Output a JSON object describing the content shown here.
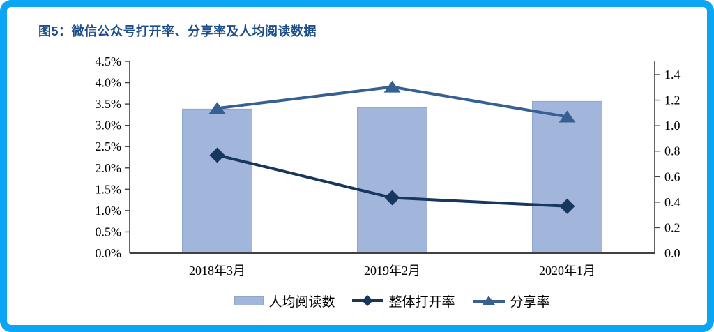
{
  "frame": {
    "border_color": "#0BA6F3"
  },
  "header": {
    "title": "图5：微信公众号打开率、分享率及人均阅读数据",
    "title_color": "#1B4E8A"
  },
  "chart_data": {
    "type": "bar",
    "subtype": "combo bar+line, dual axis",
    "title": "图5：微信公众号打开率、分享率及人均阅读数据",
    "categories": [
      "2018年3月",
      "2019年2月",
      "2020年1月"
    ],
    "left_axis": {
      "unit": "%",
      "min": 0,
      "max": 4.5,
      "step": 0.5,
      "ticks": [
        "0.0%",
        "0.5%",
        "1.0%",
        "1.5%",
        "2.0%",
        "2.5%",
        "3.0%",
        "3.5%",
        "4.0%",
        "4.5%"
      ]
    },
    "right_axis": {
      "min": 0,
      "max": 1.4,
      "step": 0.2,
      "ticks": [
        "0.0",
        "0.2",
        "0.4",
        "0.6",
        "0.8",
        "1.0",
        "1.2",
        "1.4"
      ]
    },
    "series": [
      {
        "name": "人均阅读数",
        "type": "bar",
        "axis": "right",
        "color": "#A1B6DA",
        "border_color": "#8CA6CE",
        "values": [
          1.13,
          1.14,
          1.19
        ]
      },
      {
        "name": "整体打开率",
        "type": "line",
        "marker": "diamond",
        "axis": "left",
        "color": "#17375E",
        "values": [
          2.3,
          1.3,
          1.1
        ],
        "values_display": [
          "2.3%",
          "1.3%",
          "1.1%"
        ]
      },
      {
        "name": "分享率",
        "type": "line",
        "marker": "triangle",
        "axis": "left",
        "color": "#376092",
        "values": [
          3.4,
          3.9,
          3.2
        ],
        "values_display": [
          "3.4%",
          "3.9%",
          "3.2%"
        ]
      }
    ],
    "legend": {
      "position": "bottom",
      "entries": [
        "人均阅读数",
        "整体打开率",
        "分享率"
      ]
    },
    "grid": false,
    "axis_color": "#404040"
  }
}
